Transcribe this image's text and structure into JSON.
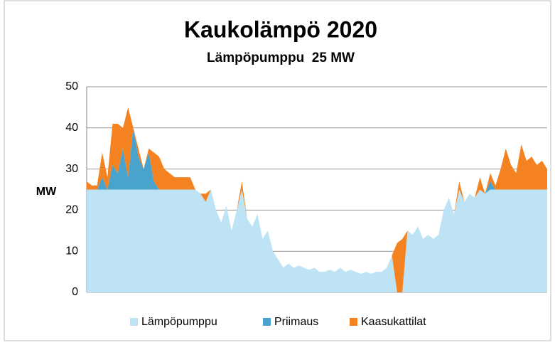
{
  "chart_data": {
    "type": "stacked_area",
    "title": "Kaukolämpö 2020",
    "subtitle": "Lämpöpumppu  25 MW",
    "y_label": "MW",
    "categories": [
      null,
      null,
      null,
      null,
      null,
      null,
      null,
      null,
      null,
      null,
      null,
      null,
      null,
      null,
      null,
      null,
      null,
      null,
      null,
      null,
      null,
      null,
      null,
      null,
      null,
      null,
      null,
      null,
      null,
      null,
      null,
      null,
      null,
      null,
      null,
      null,
      null,
      null,
      null,
      null,
      null,
      null,
      null,
      null,
      null,
      null,
      null,
      null,
      null,
      null,
      null,
      null,
      null,
      null,
      null,
      null,
      null,
      null,
      null,
      null,
      null,
      null,
      null,
      null,
      null,
      null,
      null,
      null,
      null,
      null,
      null,
      null,
      null,
      null,
      null,
      null,
      null,
      null,
      null,
      null,
      null,
      null,
      null,
      null,
      null,
      null,
      null,
      null,
      null,
      null
    ],
    "series": [
      {
        "name": "Lämpöpumppu",
        "color": "#bde3f5",
        "values": [
          25,
          25,
          25,
          25,
          25,
          25,
          25,
          25,
          25,
          25,
          25,
          25,
          25,
          25,
          25,
          25,
          25,
          25,
          25,
          25,
          25,
          25,
          24,
          22,
          25,
          20,
          17,
          21,
          15,
          20,
          25,
          18,
          16,
          19,
          13,
          15,
          10,
          8,
          6,
          7,
          6,
          6.5,
          6,
          5.5,
          6,
          5,
          5,
          5.5,
          5,
          6,
          5,
          5.5,
          5,
          4.5,
          5,
          4.5,
          5,
          5,
          6,
          9,
          0,
          0,
          15,
          14,
          16,
          13,
          14,
          13,
          14,
          20,
          23,
          19,
          25,
          22,
          24,
          23,
          25,
          24,
          25,
          25,
          25,
          25,
          25,
          25,
          25,
          25,
          25,
          25,
          25,
          25
        ]
      },
      {
        "name": "Priimaus",
        "color": "#4aa3cc",
        "values": [
          0,
          0,
          0,
          3,
          0,
          6,
          4,
          10,
          3,
          15,
          8,
          5,
          9,
          2,
          0,
          0,
          0,
          0,
          0,
          0,
          0,
          0,
          0,
          0,
          0,
          0,
          0,
          0,
          0,
          0,
          0,
          0,
          0,
          0,
          0,
          0,
          0,
          0,
          0,
          0,
          0,
          0,
          0,
          0,
          0,
          0,
          0,
          0,
          0,
          0,
          0,
          0,
          0,
          0,
          0,
          0,
          0,
          0,
          0,
          0,
          0,
          0,
          0,
          0,
          0,
          0,
          0,
          0,
          0,
          0,
          0,
          0,
          0,
          0,
          0,
          0,
          0,
          0,
          2,
          0,
          0,
          0,
          0,
          0,
          0,
          0,
          0,
          0,
          0,
          0
        ]
      },
      {
        "name": "Kaasukattilat",
        "color": "#f58220",
        "values": [
          2,
          1,
          1,
          6,
          3,
          10,
          12,
          5,
          17,
          0,
          2,
          0,
          1,
          7,
          8,
          5,
          4,
          3,
          3,
          3,
          3,
          0,
          0,
          2,
          0,
          0,
          0,
          0,
          0,
          0,
          2,
          0,
          0,
          0,
          0,
          0,
          0,
          0,
          0,
          0,
          0,
          0,
          0,
          0,
          0,
          0,
          0,
          0,
          0,
          0,
          0,
          0,
          0,
          0,
          0,
          0,
          0,
          0,
          0,
          0,
          12,
          13,
          0,
          0,
          0,
          0,
          0,
          0,
          0,
          0,
          0,
          0,
          2,
          0,
          0,
          0,
          3,
          0,
          2,
          1,
          5,
          10,
          6,
          4,
          11,
          7,
          8,
          6,
          7,
          5
        ]
      }
    ],
    "ylim": [
      0,
      50
    ],
    "yticks": [
      0,
      10,
      20,
      30,
      40,
      50
    ],
    "grid": true
  }
}
